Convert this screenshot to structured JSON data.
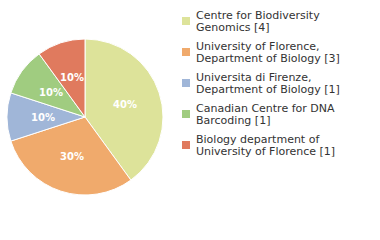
{
  "chart_data": {
    "type": "pie",
    "categories": [
      "Centre for Biodiversity Genomics [4]",
      "University of Florence, Department of Biology [3]",
      "Universita di Firenze, Department of Biology [1]",
      "Canadian Centre for DNA Barcoding [1]",
      "Biology department of University of Florence [1]"
    ],
    "values": [
      40,
      30,
      10,
      10,
      10
    ],
    "value_labels": [
      "40%",
      "30%",
      "10%",
      "10%",
      "10%"
    ],
    "colors": [
      "#dde39a",
      "#f0aa6c",
      "#a0b6d8",
      "#a0cc80",
      "#e07a5e"
    ],
    "data_labels": true,
    "legend": "right"
  }
}
